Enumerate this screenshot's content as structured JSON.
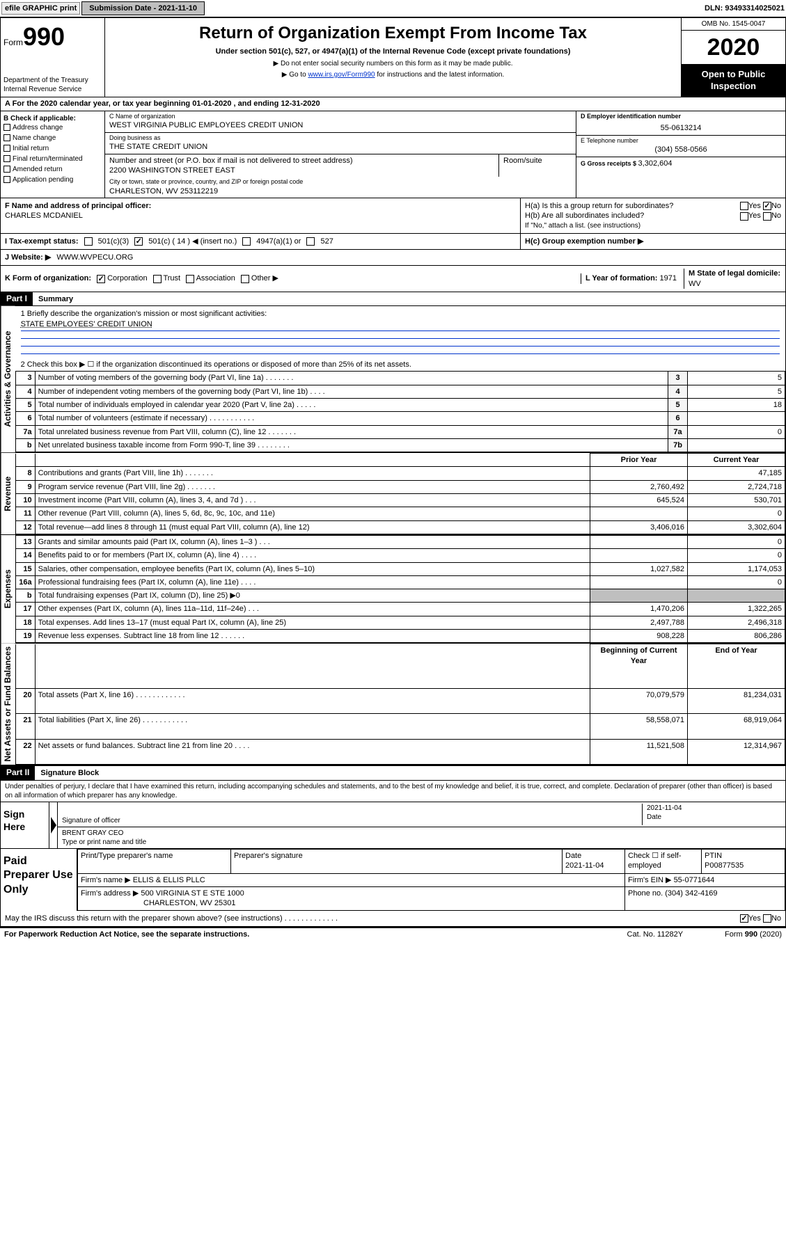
{
  "topbar": {
    "efile": "efile GRAPHIC print",
    "submission_label": "Submission Date - 2021-11-10",
    "dln": "DLN: 93493314025021"
  },
  "header": {
    "form_label": "Form",
    "form_no": "990",
    "dept": "Department of the Treasury",
    "irs": "Internal Revenue Service",
    "title": "Return of Organization Exempt From Income Tax",
    "subtitle": "Under section 501(c), 527, or 4947(a)(1) of the Internal Revenue Code (except private foundations)",
    "note1": "▶ Do not enter social security numbers on this form as it may be made public.",
    "note2_pre": "▶ Go to ",
    "note2_link": "www.irs.gov/Form990",
    "note2_post": " for instructions and the latest information.",
    "omb": "OMB No. 1545-0047",
    "year": "2020",
    "open": "Open to Public Inspection"
  },
  "line_a": "A For the 2020 calendar year, or tax year beginning 01-01-2020   , and ending 12-31-2020",
  "col_b": {
    "title": "B Check if applicable:",
    "addr": "Address change",
    "name": "Name change",
    "initial": "Initial return",
    "final": "Final return/terminated",
    "amended": "Amended return",
    "app": "Application pending"
  },
  "col_c": {
    "c_label": "C Name of organization",
    "c_name": "WEST VIRGINIA PUBLIC EMPLOYEES CREDIT UNION",
    "dba_label": "Doing business as",
    "dba": "THE STATE CREDIT UNION",
    "street_label": "Number and street (or P.O. box if mail is not delivered to street address)",
    "street": "2200 WASHINGTON STREET EAST",
    "room_label": "Room/suite",
    "city_label": "City or town, state or province, country, and ZIP or foreign postal code",
    "city": "CHARLESTON, WV  253112219"
  },
  "col_de": {
    "d_label": "D Employer identification number",
    "d_val": "55-0613214",
    "e_label": "E Telephone number",
    "e_val": "(304) 558-0566",
    "g_label": "G Gross receipts $ ",
    "g_val": "3,302,604"
  },
  "row_f": {
    "f_label": "F Name and address of principal officer:",
    "f_val": "CHARLES MCDANIEL",
    "ha": "H(a)  Is this a group return for subordinates?",
    "ha_yes": "Yes",
    "ha_no": "No",
    "hb": "H(b)  Are all subordinates included?",
    "hb_yes": "Yes",
    "hb_no": "No",
    "hb_note": "If \"No,\" attach a list. (see instructions)"
  },
  "row_i": {
    "label": "I   Tax-exempt status:",
    "o1": "501(c)(3)",
    "o2": "501(c) ( 14 ) ◀ (insert no.)",
    "o3": "4947(a)(1) or",
    "o4": "527",
    "hc": "H(c)  Group exemption number ▶"
  },
  "row_j": {
    "label": "J    Website: ▶",
    "val": "WWW.WVPECU.ORG"
  },
  "row_k": {
    "label": "K Form of organization:",
    "corp": "Corporation",
    "trust": "Trust",
    "assoc": "Association",
    "other": "Other ▶",
    "l_label": "L Year of formation: ",
    "l_val": "1971",
    "m_label": "M State of legal domicile: ",
    "m_val": "WV"
  },
  "part1": {
    "hdr": "Part I",
    "title": "Summary",
    "line1_label": "1  Briefly describe the organization's mission or most significant activities:",
    "line1_val": "STATE EMPLOYEES' CREDIT UNION",
    "line2": "2    Check this box ▶ ☐  if the organization discontinued its operations or disposed of more than 25% of its net assets.",
    "vtab_ag": "Activities & Governance",
    "vtab_rev": "Revenue",
    "vtab_exp": "Expenses",
    "vtab_na": "Net Assets or Fund Balances",
    "hdr_prior": "Prior Year",
    "hdr_curr": "Current Year",
    "hdr_boy": "Beginning of Current Year",
    "hdr_eoy": "End of Year",
    "rows_gov": [
      {
        "n": "3",
        "label": "Number of voting members of the governing body (Part VI, line 1a)  .    .    .    .    .    .    .",
        "box": "3",
        "val": "5"
      },
      {
        "n": "4",
        "label": "Number of independent voting members of the governing body (Part VI, line 1b)  .    .    .    .",
        "box": "4",
        "val": "5"
      },
      {
        "n": "5",
        "label": "Total number of individuals employed in calendar year 2020 (Part V, line 2a)  .    .    .    .    .",
        "box": "5",
        "val": "18"
      },
      {
        "n": "6",
        "label": "Total number of volunteers (estimate if necessary)  .    .    .    .    .    .    .    .    .    .    .",
        "box": "6",
        "val": ""
      },
      {
        "n": "7a",
        "label": "Total unrelated business revenue from Part VIII, column (C), line 12  .    .    .    .    .    .    .",
        "box": "7a",
        "val": "0"
      },
      {
        "n": "b",
        "label": "Net unrelated business taxable income from Form 990-T, line 39  .    .    .    .    .    .    .    .",
        "box": "7b",
        "val": ""
      }
    ],
    "rows_rev": [
      {
        "n": "8",
        "label": "Contributions and grants (Part VIII, line 1h)  .    .    .    .    .    .    .",
        "prior": "",
        "curr": "47,185"
      },
      {
        "n": "9",
        "label": "Program service revenue (Part VIII, line 2g)  .    .    .    .    .    .    .",
        "prior": "2,760,492",
        "curr": "2,724,718"
      },
      {
        "n": "10",
        "label": "Investment income (Part VIII, column (A), lines 3, 4, and 7d )  .    .    .",
        "prior": "645,524",
        "curr": "530,701"
      },
      {
        "n": "11",
        "label": "Other revenue (Part VIII, column (A), lines 5, 6d, 8c, 9c, 10c, and 11e)",
        "prior": "",
        "curr": "0"
      },
      {
        "n": "12",
        "label": "Total revenue—add lines 8 through 11 (must equal Part VIII, column (A), line 12)",
        "prior": "3,406,016",
        "curr": "3,302,604"
      }
    ],
    "rows_exp": [
      {
        "n": "13",
        "label": "Grants and similar amounts paid (Part IX, column (A), lines 1–3 )  .    .    .",
        "prior": "",
        "curr": "0"
      },
      {
        "n": "14",
        "label": "Benefits paid to or for members (Part IX, column (A), line 4)  .    .    .    .",
        "prior": "",
        "curr": "0"
      },
      {
        "n": "15",
        "label": "Salaries, other compensation, employee benefits (Part IX, column (A), lines 5–10)",
        "prior": "1,027,582",
        "curr": "1,174,053"
      },
      {
        "n": "16a",
        "label": "Professional fundraising fees (Part IX, column (A), line 11e)  .    .    .    .",
        "prior": "",
        "curr": "0"
      },
      {
        "n": "b",
        "label": "Total fundraising expenses (Part IX, column (D), line 25) ▶0",
        "prior": "",
        "curr": "",
        "shade": true
      },
      {
        "n": "17",
        "label": "Other expenses (Part IX, column (A), lines 11a–11d, 11f–24e)  .    .    .",
        "prior": "1,470,206",
        "curr": "1,322,265"
      },
      {
        "n": "18",
        "label": "Total expenses. Add lines 13–17 (must equal Part IX, column (A), line 25)",
        "prior": "2,497,788",
        "curr": "2,496,318"
      },
      {
        "n": "19",
        "label": "Revenue less expenses. Subtract line 18 from line 12  .    .    .    .    .    .",
        "prior": "908,228",
        "curr": "806,286"
      }
    ],
    "rows_na": [
      {
        "n": "20",
        "label": "Total assets (Part X, line 16)  .    .    .    .    .    .    .    .    .    .    .    .",
        "prior": "70,079,579",
        "curr": "81,234,031"
      },
      {
        "n": "21",
        "label": "Total liabilities (Part X, line 26)  .    .    .    .    .    .    .    .    .    .    .",
        "prior": "58,558,071",
        "curr": "68,919,064"
      },
      {
        "n": "22",
        "label": "Net assets or fund balances. Subtract line 21 from line 20  .    .    .    .",
        "prior": "11,521,508",
        "curr": "12,314,967"
      }
    ]
  },
  "part2": {
    "hdr": "Part II",
    "title": "Signature Block",
    "perjury": "Under penalties of perjury, I declare that I have examined this return, including accompanying schedules and statements, and to the best of my knowledge and belief, it is true, correct, and complete. Declaration of preparer (other than officer) is based on all information of which preparer has any knowledge.",
    "sign_here": "Sign Here",
    "sig_officer": "Signature of officer",
    "date_label": "Date",
    "date_val": "2021-11-04",
    "name_title": "BRENT GRAY CEO",
    "type_print": "Type or print name and title",
    "paid_prep": "Paid Preparer Use Only",
    "pp_name_label": "Print/Type preparer's name",
    "pp_sig_label": "Preparer's signature",
    "pp_date_label": "Date",
    "pp_date_val": "2021-11-04",
    "pp_check": "Check ☐ if self-employed",
    "pp_ptin_label": "PTIN",
    "pp_ptin": "P00877535",
    "firm_name_label": "Firm's name    ▶ ",
    "firm_name": "ELLIS & ELLIS PLLC",
    "firm_ein_label": "Firm's EIN ▶ ",
    "firm_ein": "55-0771644",
    "firm_addr_label": "Firm's address ▶ ",
    "firm_addr1": "500 VIRGINIA ST E STE 1000",
    "firm_addr2": "CHARLESTON, WV  25301",
    "phone_label": "Phone no. ",
    "phone": "(304) 342-4169",
    "discuss": "May the IRS discuss this return with the preparer shown above? (see instructions)  .    .    .    .    .    .    .    .    .    .    .    .    .",
    "discuss_yes": "Yes",
    "discuss_no": "No"
  },
  "footer": {
    "pra": "For Paperwork Reduction Act Notice, see the separate instructions.",
    "cat": "Cat. No. 11282Y",
    "form": "Form 990 (2020)"
  }
}
